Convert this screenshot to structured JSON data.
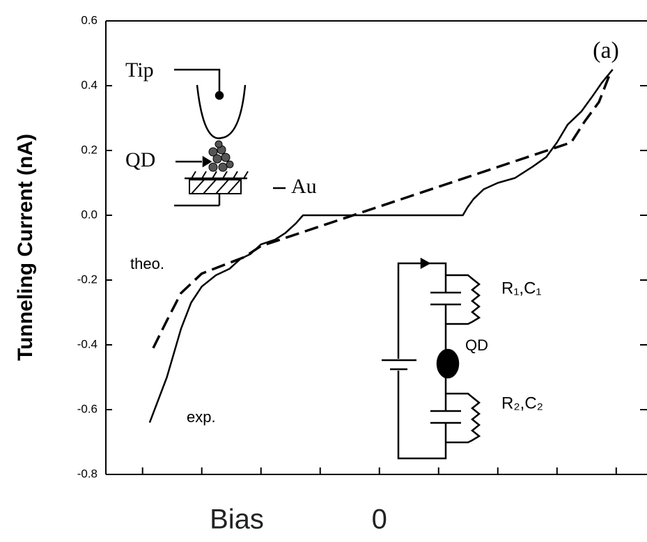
{
  "chart_data": {
    "type": "line",
    "y_label": "Tunneling Current (nA)",
    "x_label": "Bias",
    "panel_label": "(a)",
    "xlim": [
      -4.62,
      4.52
    ],
    "xticks": [
      0
    ],
    "x_minor_ticks": [
      -4,
      -3,
      -2,
      -1,
      1,
      2,
      3,
      4
    ],
    "ylim": [
      -0.8,
      0.6
    ],
    "yticks": [
      0.6,
      0.4,
      0.2,
      {
        "value": 0,
        "label": "0.0"
      },
      -0.2,
      -0.4,
      -0.6,
      -0.8
    ],
    "series": [
      {
        "name": "exp.",
        "color": "#000000",
        "dashed": false,
        "x": [
          -3.88,
          -3.59,
          -3.35,
          -3.18,
          -3.0,
          -2.76,
          -2.53,
          -2.35,
          -2.18,
          -2.0,
          -1.76,
          -1.59,
          -1.41,
          -1.29,
          -0.53,
          0.18,
          1.41,
          1.49,
          1.59,
          1.76,
          2.0,
          2.29,
          2.59,
          2.82,
          3.0,
          3.18,
          3.41,
          3.59,
          3.76,
          3.94
        ],
        "values": [
          -0.64,
          -0.5,
          -0.35,
          -0.27,
          -0.22,
          -0.185,
          -0.165,
          -0.135,
          -0.12,
          -0.09,
          -0.075,
          -0.055,
          -0.025,
          0.0,
          0.0,
          0.0,
          0.0,
          0.025,
          0.05,
          0.08,
          0.1,
          0.115,
          0.15,
          0.18,
          0.225,
          0.28,
          0.32,
          0.365,
          0.41,
          0.45
        ]
      },
      {
        "name": "theo.",
        "color": "#000000",
        "dashed": true,
        "x": [
          -3.82,
          -3.59,
          -3.35,
          -3.0,
          -2.65,
          -2.29,
          -2.0,
          3.0,
          3.24,
          3.47,
          3.71,
          3.88
        ],
        "values": [
          -0.41,
          -0.325,
          -0.24,
          -0.18,
          -0.155,
          -0.13,
          -0.095,
          0.21,
          0.225,
          0.29,
          0.35,
          0.43
        ]
      }
    ],
    "inset_labels": {
      "tip": "Tip",
      "qd": "QD",
      "au": "Au"
    },
    "circuit_labels": {
      "r1c1": "R₁,C₁",
      "qd": "QD",
      "r2c2": "R₂,C₂"
    }
  }
}
